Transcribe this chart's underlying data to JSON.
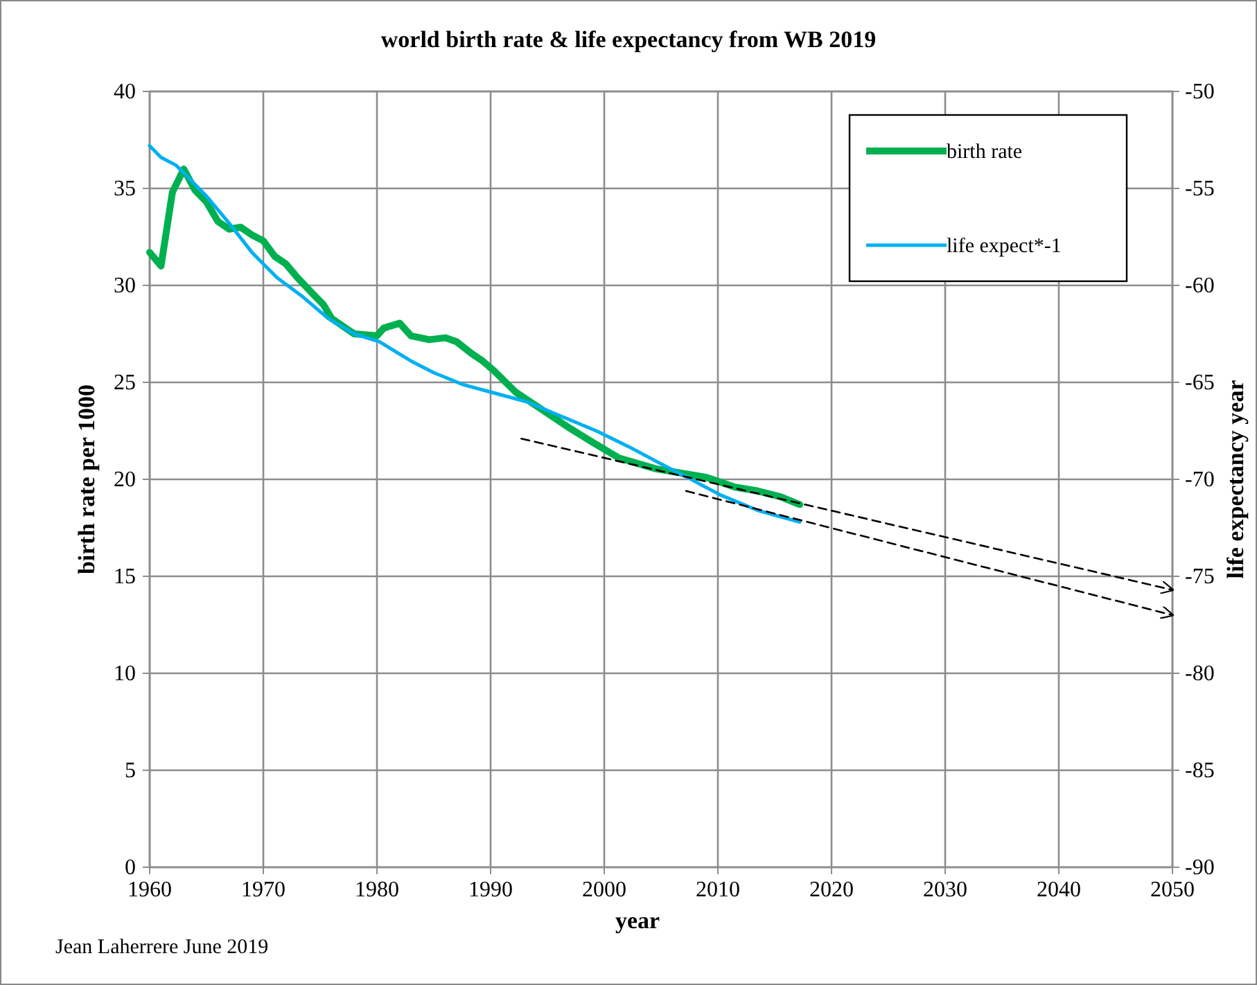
{
  "chart_data": {
    "type": "line",
    "title": "world birth rate & life expectancy from WB 2019",
    "xlabel": "year",
    "ylabel": "birth rate per 1000",
    "y2label": "life expectancy year",
    "annotations": [
      "Jean Laherrere June 2019"
    ],
    "xlim": [
      1960,
      2050
    ],
    "xticks": [
      1960,
      1970,
      1980,
      1990,
      2000,
      2010,
      2020,
      2030,
      2040,
      2050
    ],
    "ylim": [
      0,
      40
    ],
    "yticks": [
      0,
      5,
      10,
      15,
      20,
      25,
      30,
      35,
      40
    ],
    "y2lim": [
      -90,
      -50
    ],
    "y2ticks": [
      -90,
      -85,
      -80,
      -75,
      -70,
      -65,
      -60,
      -55,
      -50
    ],
    "grid": true,
    "legend": "top right",
    "marker": "none",
    "series": [
      {
        "name": "birth rate",
        "color": "#00b050",
        "x": [
          1960,
          1961,
          1962,
          1963,
          1964,
          1965,
          1966,
          1967,
          1968,
          1969,
          1970,
          1971,
          1972,
          1973,
          1974.3,
          1975.3,
          1976,
          1977,
          1978,
          1980,
          1980.6,
          1982,
          1983,
          1984.6,
          1986,
          1987,
          1988.3,
          1989.3,
          1990.3,
          1992.2,
          1994,
          1996.8,
          1999,
          2001.3,
          2004.5,
          2007,
          2009,
          2011.5,
          2013.5,
          2015.5,
          2017.2
        ],
        "values": [
          31.7,
          31.0,
          34.8,
          36.0,
          34.9,
          34.3,
          33.3,
          32.9,
          33.0,
          32.6,
          32.3,
          31.5,
          31.1,
          30.4,
          29.6,
          29.0,
          28.3,
          27.9,
          27.5,
          27.4,
          27.8,
          28.05,
          27.4,
          27.2,
          27.3,
          27.1,
          26.5,
          26.1,
          25.6,
          24.5,
          23.8,
          22.7,
          21.9,
          21.1,
          20.55,
          20.3,
          20.1,
          19.6,
          19.4,
          19.1,
          18.7
        ]
      },
      {
        "name": "life expect*-1",
        "color": "#00b0f0",
        "axis": "y2",
        "x": [
          1960,
          1961,
          1962.3,
          1963,
          1965,
          1967,
          1969,
          1971.2,
          1973.5,
          1975.7,
          1978,
          1980.2,
          1983,
          1985,
          1987.5,
          1990,
          1993.2,
          1995.2,
          1999.3,
          2002.1,
          2005,
          2007.8,
          2010.2,
          2013.5,
          2017.2
        ],
        "values": [
          -52.8,
          -53.4,
          -53.8,
          -54.2,
          -55.4,
          -56.8,
          -58.3,
          -59.6,
          -60.6,
          -61.7,
          -62.5,
          -62.9,
          -63.9,
          -64.5,
          -65.1,
          -65.5,
          -66.0,
          -66.5,
          -67.5,
          -68.3,
          -69.2,
          -70.05,
          -70.8,
          -71.6,
          -72.2
        ]
      },
      {
        "color": "#000000",
        "line_style": "dashed",
        "x": [
          1992.7,
          2050
        ],
        "values": [
          22.1,
          14.3
        ]
      },
      {
        "color": "#000000",
        "line_style": "dashed",
        "x": [
          2007.2,
          2050
        ],
        "values": [
          19.4,
          13.0
        ]
      }
    ]
  }
}
